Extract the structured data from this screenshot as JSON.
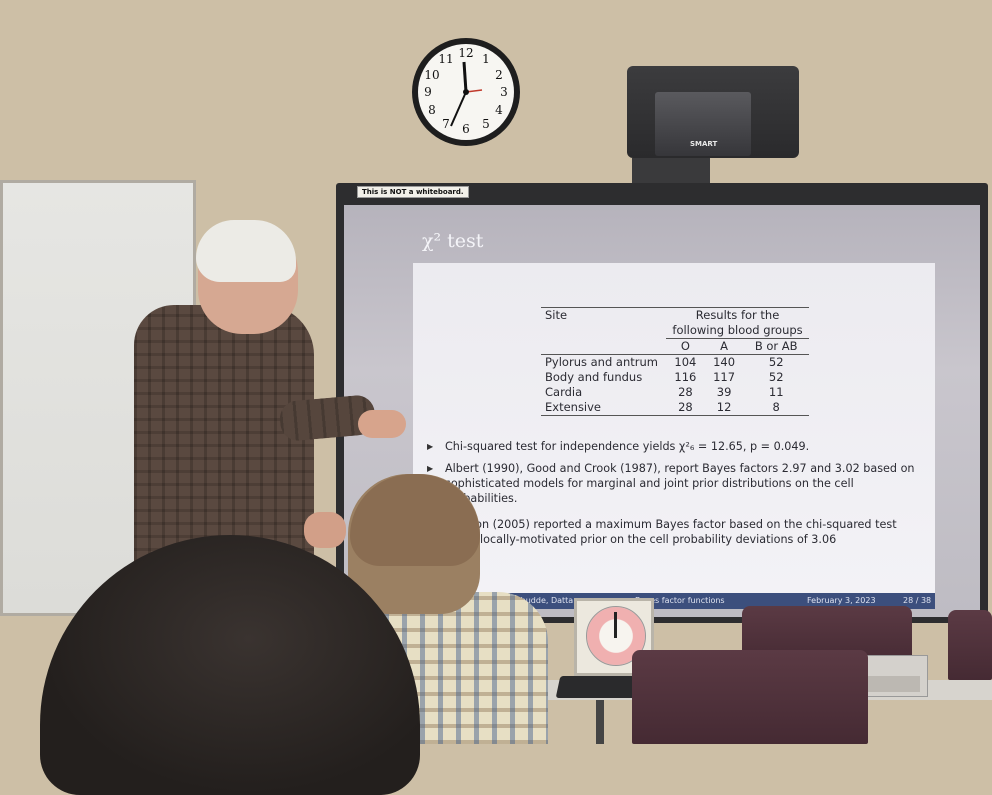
{
  "photo": {
    "sticker_text": "This is NOT a whiteboard.",
    "projector_brand": "SMART"
  },
  "clock": {
    "numerals": [
      "12",
      "1",
      "2",
      "3",
      "4",
      "5",
      "6",
      "7",
      "8",
      "9",
      "10",
      "11"
    ]
  },
  "slide": {
    "title": "χ² test",
    "table": {
      "col_site": "Site",
      "group_header_line1": "Results for the",
      "group_header_line2": "following blood groups",
      "col_o": "O",
      "col_a": "A",
      "col_b_ab": "B or AB",
      "rows": [
        {
          "site": "Pylorus and antrum",
          "o": "104",
          "a": "140",
          "b_ab": "52"
        },
        {
          "site": "Body and fundus",
          "o": "116",
          "a": "117",
          "b_ab": "52"
        },
        {
          "site": "Cardia",
          "o": "28",
          "a": "39",
          "b_ab": "11"
        },
        {
          "site": "Extensive",
          "o": "28",
          "a": "12",
          "b_ab": "8"
        }
      ]
    },
    "bullets": [
      "Chi-squared test for independence yields χ²₆ = 12.65, p = 0.049.",
      "Albert (1990), Good and Crook (1987), report Bayes factors 2.97 and 3.02 based on sophisticated models for marginal and joint prior distributions on the cell probabilities.",
      "Johnson (2005) reported a maximum Bayes factor based on the chi-squared test and a locally-motivated prior on the cell probability deviations of 3.06"
    ],
    "footer": {
      "authors": "Pramanik, Shudde, Datta",
      "talk_title": "Bayes factor functions",
      "date": "February 3, 2023",
      "page": "28 / 38"
    }
  },
  "colors": {
    "wall": "#cdbfa6",
    "slide_footer": "#3c4f7d",
    "screen_frame": "#2d2d2f"
  }
}
